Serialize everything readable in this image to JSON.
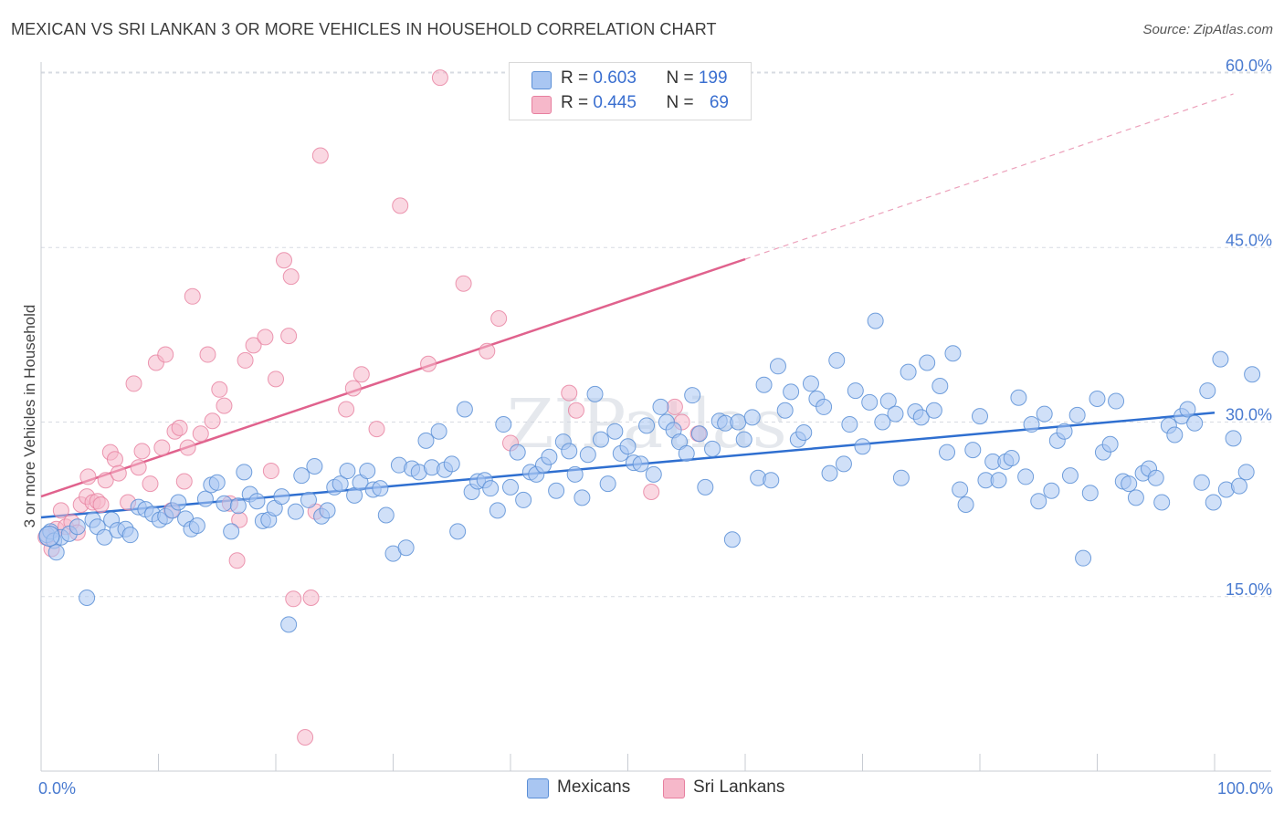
{
  "title": "MEXICAN VS SRI LANKAN 3 OR MORE VEHICLES IN HOUSEHOLD CORRELATION CHART",
  "source": "Source: ZipAtlas.com",
  "watermark": "ZIPatlas",
  "legend": {
    "rows": [
      {
        "r_label": "R = ",
        "r_value": "0.603",
        "n_label": "N = ",
        "n_value": "199"
      },
      {
        "r_label": "R = ",
        "r_value": "0.445",
        "n_label": "N = ",
        "n_value": "69"
      }
    ]
  },
  "bottom_legend": [
    "Mexicans",
    "Sri Lankans"
  ],
  "colors": {
    "blue_fill": "#a9c6f2",
    "blue_stroke": "#5b8fd6",
    "blue_line": "#2f6fd0",
    "pink_fill": "#f6b8ca",
    "pink_stroke": "#e77f9f",
    "pink_line": "#e0628d",
    "grid": "#d7dbe2",
    "tick_text": "#4a7bd0"
  },
  "chart_data": {
    "type": "scatter",
    "ylabel": "3 or more Vehicles in Household",
    "xlim": [
      0,
      100
    ],
    "ylim": [
      0,
      65
    ],
    "x_tick_labels": [
      "0.0%",
      "100.0%"
    ],
    "y_ticks": [
      15,
      30,
      45,
      60
    ],
    "y_tick_labels": [
      "15.0%",
      "30.0%",
      "45.0%",
      "60.0%"
    ],
    "grid": "horizontal dashed",
    "series": [
      {
        "name": "Mexicans",
        "r": 0.603,
        "n": 199,
        "trend": {
          "x0": 0,
          "y0": 21.8,
          "x1": 100,
          "y1": 30.8
        },
        "points": [
          [
            0.5,
            20.3
          ],
          [
            0.8,
            20.6
          ],
          [
            1.1,
            19.8
          ],
          [
            1.3,
            18.8
          ],
          [
            1.7,
            20.1
          ],
          [
            2.4,
            20.4
          ],
          [
            3.1,
            21.0
          ],
          [
            3.9,
            14.9
          ],
          [
            4.4,
            21.6
          ],
          [
            4.8,
            21.0
          ],
          [
            5.4,
            20.1
          ],
          [
            6.0,
            21.6
          ],
          [
            6.5,
            20.7
          ],
          [
            7.2,
            20.8
          ],
          [
            7.6,
            20.3
          ],
          [
            8.3,
            22.7
          ],
          [
            8.9,
            22.5
          ],
          [
            9.5,
            22.1
          ],
          [
            10.1,
            21.6
          ],
          [
            10.6,
            21.9
          ],
          [
            11.2,
            22.4
          ],
          [
            11.7,
            23.1
          ],
          [
            12.3,
            21.7
          ],
          [
            12.8,
            20.8
          ],
          [
            13.3,
            21.1
          ],
          [
            14.0,
            23.4
          ],
          [
            14.5,
            24.6
          ],
          [
            15.0,
            24.8
          ],
          [
            15.6,
            23.0
          ],
          [
            16.2,
            20.6
          ],
          [
            16.8,
            22.8
          ],
          [
            17.3,
            25.7
          ],
          [
            17.8,
            23.8
          ],
          [
            18.4,
            23.2
          ],
          [
            18.9,
            21.5
          ],
          [
            19.4,
            21.6
          ],
          [
            19.9,
            22.6
          ],
          [
            20.5,
            23.6
          ],
          [
            21.1,
            12.6
          ],
          [
            21.7,
            22.3
          ],
          [
            22.2,
            25.4
          ],
          [
            22.8,
            23.3
          ],
          [
            23.3,
            26.2
          ],
          [
            23.9,
            21.9
          ],
          [
            24.4,
            22.4
          ],
          [
            25.0,
            24.4
          ],
          [
            25.5,
            24.7
          ],
          [
            26.1,
            25.8
          ],
          [
            26.7,
            23.7
          ],
          [
            27.2,
            24.8
          ],
          [
            27.8,
            25.8
          ],
          [
            28.3,
            24.2
          ],
          [
            28.9,
            24.3
          ],
          [
            29.4,
            22.0
          ],
          [
            30.0,
            18.7
          ],
          [
            30.5,
            26.3
          ],
          [
            31.1,
            19.2
          ],
          [
            31.6,
            26.0
          ],
          [
            32.2,
            25.7
          ],
          [
            32.8,
            28.4
          ],
          [
            33.3,
            26.1
          ],
          [
            33.9,
            29.2
          ],
          [
            34.4,
            25.9
          ],
          [
            35.0,
            26.4
          ],
          [
            35.5,
            20.6
          ],
          [
            36.1,
            31.1
          ],
          [
            36.7,
            24.0
          ],
          [
            37.2,
            24.9
          ],
          [
            37.8,
            25.0
          ],
          [
            38.3,
            24.3
          ],
          [
            38.9,
            22.4
          ],
          [
            39.4,
            29.8
          ],
          [
            40.0,
            24.4
          ],
          [
            40.6,
            27.4
          ],
          [
            41.1,
            23.3
          ],
          [
            41.7,
            25.7
          ],
          [
            42.2,
            25.5
          ],
          [
            42.8,
            26.3
          ],
          [
            43.3,
            27.0
          ],
          [
            43.9,
            24.1
          ],
          [
            44.5,
            28.3
          ],
          [
            45.0,
            27.5
          ],
          [
            45.5,
            25.5
          ],
          [
            46.1,
            23.5
          ],
          [
            46.6,
            27.2
          ],
          [
            47.2,
            32.4
          ],
          [
            47.7,
            28.5
          ],
          [
            48.3,
            24.7
          ],
          [
            48.9,
            29.2
          ],
          [
            49.4,
            27.3
          ],
          [
            50.0,
            27.9
          ],
          [
            50.5,
            26.5
          ],
          [
            51.1,
            26.4
          ],
          [
            51.6,
            29.7
          ],
          [
            52.2,
            25.5
          ],
          [
            52.8,
            31.3
          ],
          [
            53.3,
            30.0
          ],
          [
            53.9,
            29.3
          ],
          [
            54.4,
            28.3
          ],
          [
            55.0,
            27.3
          ],
          [
            55.5,
            32.3
          ],
          [
            56.1,
            29.0
          ],
          [
            56.6,
            24.4
          ],
          [
            57.2,
            27.7
          ],
          [
            57.8,
            30.1
          ],
          [
            58.3,
            29.9
          ],
          [
            58.9,
            19.9
          ],
          [
            59.4,
            30.0
          ],
          [
            59.9,
            28.5
          ],
          [
            60.6,
            30.4
          ],
          [
            61.1,
            25.2
          ],
          [
            61.6,
            33.2
          ],
          [
            62.2,
            25.0
          ],
          [
            62.8,
            34.8
          ],
          [
            63.4,
            31.0
          ],
          [
            63.9,
            32.6
          ],
          [
            64.5,
            28.5
          ],
          [
            65.0,
            29.1
          ],
          [
            65.6,
            33.3
          ],
          [
            66.1,
            32.0
          ],
          [
            66.7,
            31.3
          ],
          [
            67.2,
            25.6
          ],
          [
            67.8,
            35.3
          ],
          [
            68.4,
            26.4
          ],
          [
            68.9,
            29.8
          ],
          [
            69.4,
            32.7
          ],
          [
            70.0,
            27.9
          ],
          [
            70.6,
            31.7
          ],
          [
            71.1,
            38.7
          ],
          [
            71.7,
            30.0
          ],
          [
            72.2,
            31.8
          ],
          [
            72.8,
            30.7
          ],
          [
            73.3,
            25.2
          ],
          [
            73.9,
            34.3
          ],
          [
            74.5,
            30.9
          ],
          [
            75.0,
            30.4
          ],
          [
            75.5,
            35.1
          ],
          [
            76.1,
            31.0
          ],
          [
            76.6,
            33.1
          ],
          [
            77.2,
            27.4
          ],
          [
            77.7,
            35.9
          ],
          [
            78.3,
            24.2
          ],
          [
            78.8,
            22.9
          ],
          [
            79.4,
            27.6
          ],
          [
            80.0,
            30.5
          ],
          [
            80.5,
            25.0
          ],
          [
            81.1,
            26.6
          ],
          [
            81.6,
            25.0
          ],
          [
            82.2,
            26.6
          ],
          [
            82.7,
            26.9
          ],
          [
            83.3,
            32.1
          ],
          [
            83.9,
            25.3
          ],
          [
            84.4,
            29.8
          ],
          [
            85.0,
            23.2
          ],
          [
            85.5,
            30.7
          ],
          [
            86.1,
            24.1
          ],
          [
            86.6,
            28.4
          ],
          [
            87.2,
            29.2
          ],
          [
            87.7,
            25.4
          ],
          [
            88.3,
            30.6
          ],
          [
            88.8,
            18.3
          ],
          [
            89.4,
            23.9
          ],
          [
            90.0,
            32.0
          ],
          [
            90.5,
            27.4
          ],
          [
            91.1,
            28.1
          ],
          [
            91.6,
            31.8
          ],
          [
            92.2,
            24.9
          ],
          [
            92.7,
            24.7
          ],
          [
            93.3,
            23.5
          ],
          [
            93.9,
            25.6
          ],
          [
            94.4,
            26.0
          ],
          [
            95.0,
            25.2
          ],
          [
            95.5,
            23.1
          ],
          [
            96.1,
            29.7
          ],
          [
            96.6,
            28.9
          ],
          [
            97.2,
            30.5
          ],
          [
            97.7,
            31.1
          ],
          [
            98.3,
            29.9
          ],
          [
            98.9,
            24.8
          ],
          [
            99.4,
            32.7
          ],
          [
            99.9,
            23.1
          ],
          [
            100.5,
            35.4
          ],
          [
            101.0,
            24.2
          ],
          [
            101.6,
            28.6
          ],
          [
            102.1,
            24.5
          ],
          [
            102.7,
            25.7
          ],
          [
            103.2,
            34.1
          ]
        ]
      },
      {
        "name": "Sri Lankans",
        "r": 0.445,
        "n": 69,
        "trend_solid": {
          "x0": 0,
          "y0": 23.6,
          "x1": 60,
          "y1": 44.0
        },
        "trend_dashed": {
          "x0": 60,
          "y0": 44.0,
          "x1": 101.6,
          "y1": 58.2
        },
        "points": [
          [
            0.4,
            20.1
          ],
          [
            0.9,
            19.1
          ],
          [
            1.3,
            20.8
          ],
          [
            1.7,
            22.4
          ],
          [
            2.1,
            21.0
          ],
          [
            2.6,
            21.4
          ],
          [
            3.1,
            20.5
          ],
          [
            3.4,
            22.9
          ],
          [
            3.9,
            23.6
          ],
          [
            4.0,
            25.3
          ],
          [
            4.4,
            23.1
          ],
          [
            4.8,
            23.2
          ],
          [
            5.1,
            22.9
          ],
          [
            5.5,
            25.0
          ],
          [
            5.9,
            27.4
          ],
          [
            6.3,
            26.8
          ],
          [
            6.6,
            25.6
          ],
          [
            7.4,
            23.1
          ],
          [
            7.9,
            33.3
          ],
          [
            8.3,
            26.1
          ],
          [
            8.6,
            27.5
          ],
          [
            9.3,
            24.7
          ],
          [
            9.8,
            35.1
          ],
          [
            10.3,
            27.8
          ],
          [
            10.6,
            35.8
          ],
          [
            11.1,
            22.4
          ],
          [
            11.4,
            29.2
          ],
          [
            11.8,
            29.5
          ],
          [
            12.2,
            24.9
          ],
          [
            12.5,
            27.8
          ],
          [
            12.9,
            40.8
          ],
          [
            13.6,
            29.0
          ],
          [
            14.2,
            35.8
          ],
          [
            14.6,
            30.1
          ],
          [
            15.2,
            32.8
          ],
          [
            15.6,
            31.4
          ],
          [
            16.1,
            23.0
          ],
          [
            16.7,
            18.1
          ],
          [
            16.9,
            21.6
          ],
          [
            17.4,
            35.3
          ],
          [
            18.1,
            36.6
          ],
          [
            19.1,
            37.3
          ],
          [
            19.6,
            25.8
          ],
          [
            20.0,
            33.7
          ],
          [
            20.7,
            43.9
          ],
          [
            21.1,
            37.4
          ],
          [
            21.3,
            42.5
          ],
          [
            21.5,
            14.8
          ],
          [
            22.5,
            2.9
          ],
          [
            23.0,
            14.9
          ],
          [
            23.4,
            22.3
          ],
          [
            23.8,
            52.9
          ],
          [
            26.0,
            31.1
          ],
          [
            26.6,
            32.9
          ],
          [
            27.3,
            34.1
          ],
          [
            28.6,
            29.4
          ],
          [
            30.6,
            48.6
          ],
          [
            33.0,
            35.0
          ],
          [
            34.0,
            59.6
          ],
          [
            36.0,
            41.9
          ],
          [
            38.0,
            36.1
          ],
          [
            39.0,
            38.9
          ],
          [
            40.0,
            28.2
          ],
          [
            45.0,
            32.5
          ],
          [
            45.6,
            31.0
          ],
          [
            52.0,
            24.0
          ],
          [
            54.0,
            31.3
          ],
          [
            54.6,
            30.0
          ],
          [
            56.0,
            29.0
          ]
        ]
      }
    ]
  }
}
